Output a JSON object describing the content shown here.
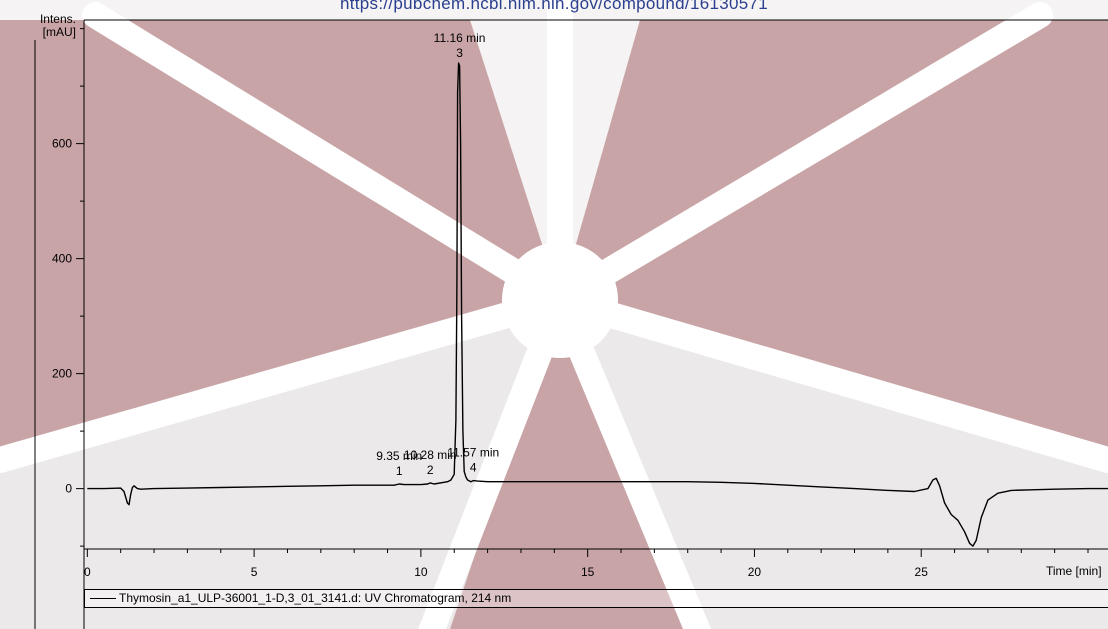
{
  "watermark": {
    "url_text": "https://pubchem.ncbi.nlm.nih.gov/compound/16130571",
    "colors": {
      "dark": "#c9a4a6",
      "light": "#ebe9e9",
      "rays": "#ffffff"
    }
  },
  "chart_data": {
    "type": "line",
    "title": "",
    "xlabel": "Time [min]",
    "ylabel": "Intens.",
    "ylabel_unit": "[mAU]",
    "xlim": [
      -0.1,
      30.6
    ],
    "ylim": [
      -105,
      815
    ],
    "x_ticks": [
      0,
      5,
      10,
      15,
      20,
      25
    ],
    "y_ticks": [
      0,
      200,
      400,
      600
    ],
    "x_minor_step": 1,
    "y_minor_step": 100,
    "grid": false,
    "legend": {
      "placement": "bottom",
      "entries": [
        "Thymosin_a1_ULP-36001_1-D,3_01_3141.d: UV Chromatogram, 214 nm"
      ]
    },
    "series": [
      {
        "name": "Thymosin_a1_ULP-36001_1-D,3_01_3141.d: UV Chromatogram, 214 nm",
        "color": "#000000",
        "x": [
          0,
          0.5,
          1.0,
          1.1,
          1.2,
          1.25,
          1.3,
          1.35,
          1.4,
          1.5,
          1.6,
          2.0,
          3.0,
          4.0,
          5.0,
          6.0,
          7.0,
          8.0,
          9.0,
          9.2,
          9.35,
          9.5,
          10.0,
          10.2,
          10.28,
          10.4,
          10.8,
          10.9,
          11.0,
          11.05,
          11.08,
          11.1,
          11.13,
          11.16,
          11.19,
          11.22,
          11.26,
          11.3,
          11.35,
          11.4,
          11.5,
          11.57,
          11.7,
          12.0,
          13.0,
          15.0,
          17.0,
          18.0,
          19.0,
          20.0,
          21.0,
          22.0,
          23.0,
          24.0,
          24.8,
          25.2,
          25.35,
          25.45,
          25.55,
          25.7,
          25.9,
          26.1,
          26.3,
          26.45,
          26.55,
          26.65,
          26.8,
          27.0,
          27.3,
          27.7,
          28.3,
          29.0,
          30.0,
          30.6
        ],
        "y": [
          0,
          0,
          1,
          -5,
          -25,
          -28,
          -10,
          2,
          5,
          0,
          -1,
          0,
          1,
          2,
          3,
          4,
          5,
          6,
          6,
          6,
          8,
          7,
          7,
          8,
          10,
          8,
          12,
          15,
          25,
          120,
          350,
          690,
          740,
          735,
          600,
          300,
          100,
          30,
          20,
          15,
          12,
          14,
          13,
          12,
          12,
          12,
          12,
          12,
          11,
          9,
          6,
          3,
          0,
          -3,
          -5,
          0,
          15,
          18,
          5,
          -25,
          -45,
          -55,
          -75,
          -95,
          -100,
          -90,
          -50,
          -20,
          -8,
          -3,
          -2,
          -1,
          0,
          0
        ]
      }
    ],
    "peak_labels": [
      {
        "time_label": "9.35 min",
        "number": "1",
        "x": 9.35
      },
      {
        "time_label": "10.28 min",
        "number": "2",
        "x": 10.28
      },
      {
        "time_label": "11.16 min",
        "number": "3",
        "x": 11.16
      },
      {
        "time_label": "11.57 min",
        "number": "4",
        "x": 11.57
      }
    ]
  }
}
